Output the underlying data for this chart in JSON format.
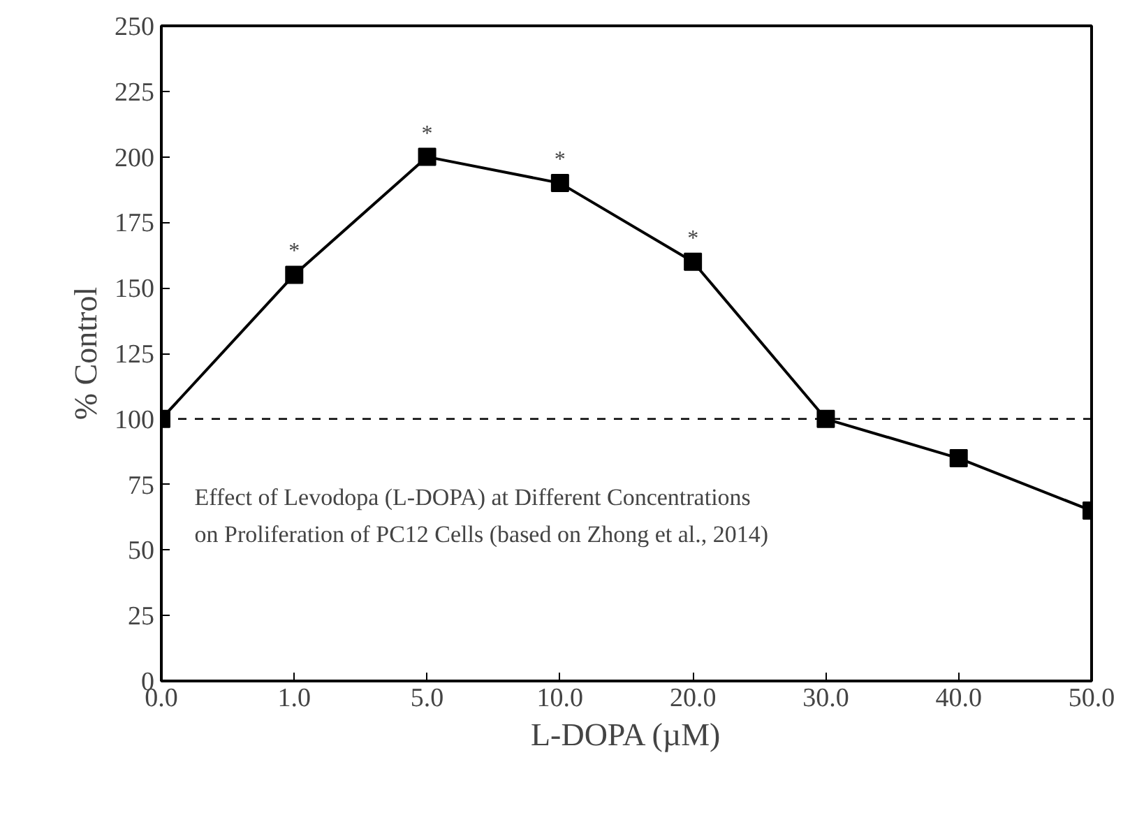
{
  "chart_data": {
    "type": "line",
    "xlabel": "L-DOPA (µM)",
    "ylabel": "% Control",
    "categories": [
      "0.0",
      "1.0",
      "5.0",
      "10.0",
      "20.0",
      "30.0",
      "40.0",
      "50.0"
    ],
    "series": [
      {
        "color": "#000000",
        "values": [
          100,
          155,
          200,
          190,
          160,
          100,
          85,
          65
        ]
      }
    ],
    "ylim": [
      0,
      250
    ],
    "yticks": [
      0,
      25,
      50,
      75,
      100,
      125,
      150,
      175,
      200,
      225,
      250
    ],
    "marker": "square",
    "line_style": "solid",
    "grid": false,
    "ref_lines": [
      {
        "axis": "y",
        "value": 100,
        "line_style": "dashed",
        "color": "#000000"
      }
    ],
    "annotations": [
      {
        "text": "*",
        "x": "1.0",
        "y": 155
      },
      {
        "text": "*",
        "x": "5.0",
        "y": 200
      },
      {
        "text": "*",
        "x": "10.0",
        "y": 190
      },
      {
        "text": "*",
        "x": "20.0",
        "y": 160
      },
      "Effect of Levodopa (L-DOPA) at Different Concentrations",
      "on Proliferation of PC12 Cells (based on Zhong et al., 2014)"
    ]
  }
}
